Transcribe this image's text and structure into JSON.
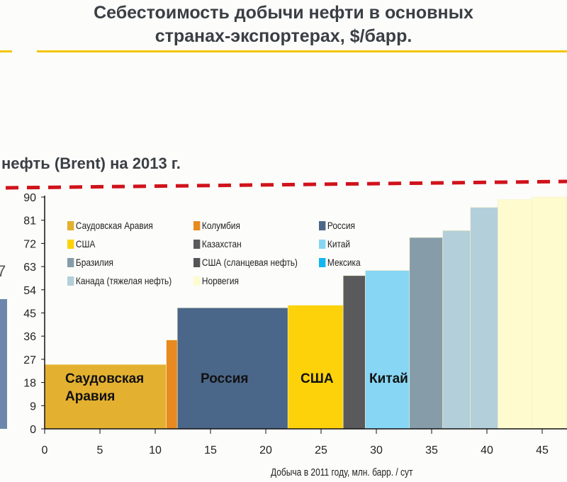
{
  "title_line1": "Себестоимость добычи нефти в основных",
  "title_line2": "странах-экспортерах, $/барр.",
  "brent_label": "нефть (Brent) на 2013 г.",
  "partial_value": "7",
  "chart_data": {
    "type": "bar",
    "subtype": "variable-width step bar (cost curve)",
    "title": "Себестоимость добычи нефти в основных странах-экспортерах, $/барр.",
    "xlabel": "Добыча в 2011 году, млн. барр. / сут",
    "ylabel": "",
    "xlim": [
      0,
      47.2
    ],
    "ylim": [
      0,
      90
    ],
    "xticks": [
      0,
      5,
      10,
      15,
      20,
      25,
      30,
      35,
      40,
      45
    ],
    "yticks": [
      0,
      9,
      18,
      27,
      36,
      45,
      54,
      63,
      72,
      81,
      90
    ],
    "reference_line": {
      "label": "нефть (Brent) на 2013 г.",
      "style": "dashed",
      "color": "#d0121b"
    },
    "segments": [
      {
        "country": "Саудовская Аравия",
        "x0": 0,
        "x1": 11,
        "value": 25,
        "color": "#e3b030"
      },
      {
        "country": "Колумбия",
        "x0": 11,
        "x1": 12,
        "value": 34.5,
        "color": "#e88a1f"
      },
      {
        "country": "Россия",
        "x0": 12,
        "x1": 22,
        "value": 47,
        "color": "#4a6688"
      },
      {
        "country": "США",
        "x0": 22,
        "x1": 27,
        "value": 48,
        "color": "#fdd20a"
      },
      {
        "country": "Казахстан",
        "x0": 27,
        "x1": 29,
        "value": 59.5,
        "color": "#5a5a5c"
      },
      {
        "country": "Китай",
        "x0": 29,
        "x1": 33,
        "value": 61.5,
        "color": "#87d6f4"
      },
      {
        "country": "Бразилия",
        "x0": 33,
        "x1": 36,
        "value": 74.3,
        "color": "#869ca9"
      },
      {
        "country": "Канада (тяжелая нефть)",
        "x0": 36,
        "x1": 38.5,
        "value": 77,
        "color": "#b3cfd9"
      },
      {
        "country": "Канада (тяжелая нефть)",
        "x0": 38.5,
        "x1": 41,
        "value": 86,
        "color": "#b3cfd9"
      },
      {
        "country": "Норвегия",
        "x0": 41,
        "x1": 44.1,
        "value": 89,
        "color": "#fefbcf"
      },
      {
        "country": "Норвегия",
        "x0": 44.1,
        "x1": 47.2,
        "value": 90,
        "color": "#fefbcf"
      }
    ],
    "legend": [
      {
        "label": "Саудовская Аравия",
        "color": "#e3b030"
      },
      {
        "label": "Колумбия",
        "color": "#e88a1f"
      },
      {
        "label": "Россия",
        "color": "#4a6688"
      },
      {
        "label": "США",
        "color": "#fdd20a"
      },
      {
        "label": "Казахстан",
        "color": "#5a5a5c"
      },
      {
        "label": "Китай",
        "color": "#87d6f4"
      },
      {
        "label": "Бразилия",
        "color": "#869ca9"
      },
      {
        "label": "США (сланцевая нефть)",
        "color": "#555557"
      },
      {
        "label": "Мексика",
        "color": "#12b7ef"
      },
      {
        "label": "Канада (тяжелая нефть)",
        "color": "#b3cfd9"
      },
      {
        "label": "Норвегия",
        "color": "#fefbcf"
      }
    ],
    "bar_labels": [
      {
        "text": "Саудовская",
        "text2": "Аравия"
      },
      {
        "text": "Россия"
      },
      {
        "text": "США"
      },
      {
        "text": "Китай"
      }
    ],
    "legend_placement": "top-left inside plot"
  }
}
